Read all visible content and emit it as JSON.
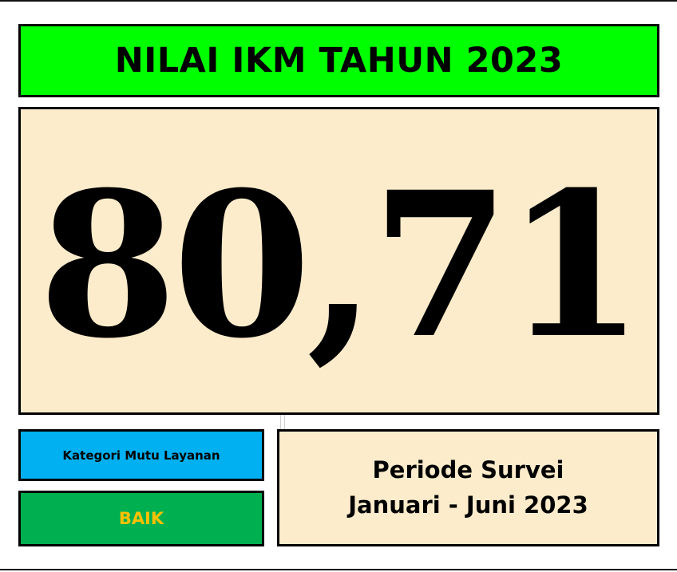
{
  "header": {
    "title": "NILAI IKM TAHUN 2023"
  },
  "score": {
    "value": "80,71"
  },
  "kategori": {
    "label": "Kategori Mutu Layanan",
    "value": "BAIK"
  },
  "periode": {
    "label": "Periode Survei",
    "range": "Januari - Juni 2023"
  },
  "colors": {
    "title_bg": "#00ff00",
    "score_bg": "#fdeccb",
    "kategori_bg": "#00b0f0",
    "baik_bg": "#00b050",
    "baik_text": "#ffc000",
    "periode_bg": "#fdeccb"
  }
}
